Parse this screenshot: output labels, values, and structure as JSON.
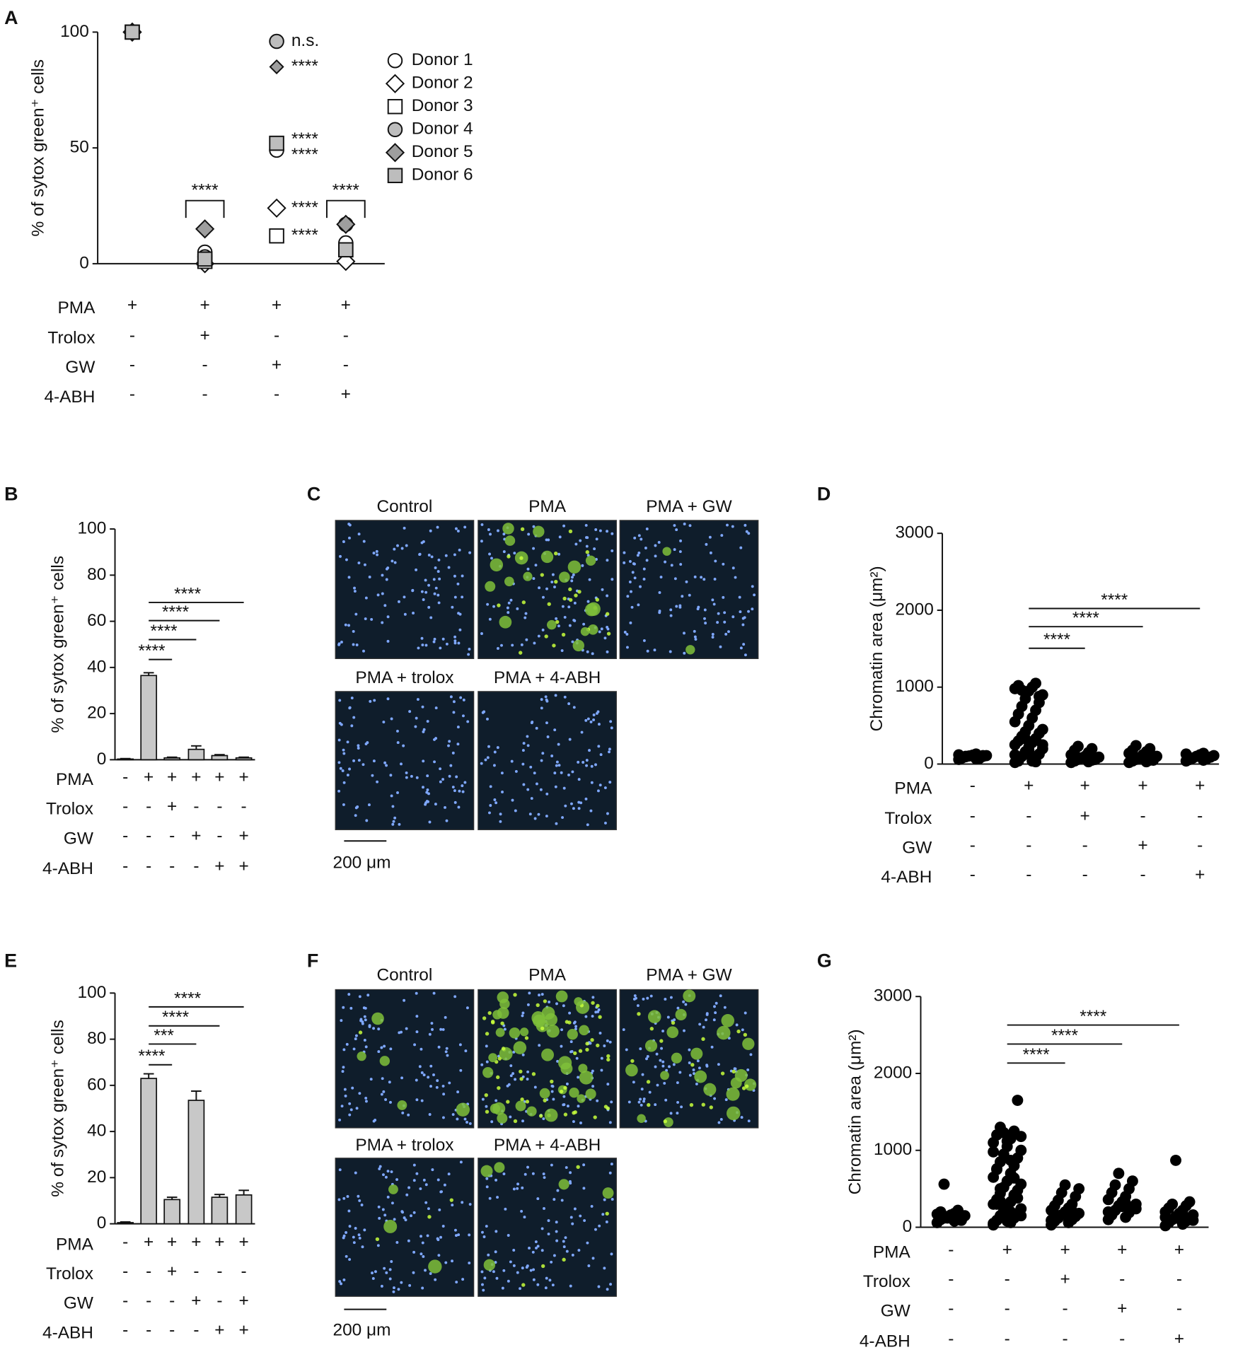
{
  "panel_labels": [
    "A",
    "B",
    "C",
    "D",
    "E",
    "F",
    "G"
  ],
  "chart_data": [
    {
      "type": "dot",
      "y_label": "% of sytox green⁺ cells",
      "categories": [
        null,
        null,
        null,
        null
      ],
      "ylim": [
        0,
        100
      ],
      "yticks": [
        0,
        50,
        100
      ],
      "grid": false,
      "series": [
        {
          "name": "Donor 1",
          "marker": "circle",
          "color": "#ffffff",
          "values": [
            100,
            5,
            49,
            9
          ],
          "significance": "****"
        },
        {
          "name": "Donor 2",
          "marker": "diamond",
          "color": "#ffffff",
          "values": [
            100,
            0,
            24,
            1
          ],
          "significance": "****"
        },
        {
          "name": "Donor 3",
          "marker": "square",
          "color": "#ffffff",
          "values": [
            100,
            1,
            12,
            6
          ],
          "significance": "****"
        },
        {
          "name": "Donor 4",
          "marker": "circle",
          "color": "#bdbdbd",
          "values": [
            100,
            3,
            96,
            17
          ],
          "significance": "n.s."
        },
        {
          "name": "Donor 5",
          "marker": "diamond",
          "color": "#9e9e9e",
          "values": [
            100,
            15,
            85,
            17
          ],
          "significance": "****"
        },
        {
          "name": "Donor 6",
          "marker": "square",
          "color": "#bdbdbd",
          "values": [
            100,
            2,
            52,
            6
          ],
          "significance": "****"
        }
      ],
      "comparisons": [
        "****",
        "****"
      ],
      "conditions": [
        {
          "label": "PMA",
          "marks": [
            "+",
            "+",
            "+",
            "+"
          ]
        },
        {
          "label": "Trolox",
          "marks": [
            "-",
            "+",
            "-",
            "-"
          ]
        },
        {
          "label": "GW",
          "marks": [
            "-",
            "-",
            "+",
            "-"
          ]
        },
        {
          "label": "4-ABH",
          "marks": [
            "-",
            "-",
            "-",
            "+"
          ]
        }
      ]
    },
    {
      "type": "bar",
      "y_label": "% of sytox green⁺ cells",
      "categories": [
        null,
        null,
        null,
        null,
        null,
        null
      ],
      "values": [
        0.3,
        36.5,
        0.8,
        4.5,
        1.8,
        0.8
      ],
      "errors": [
        0.2,
        1.2,
        0.3,
        1.5,
        0.4,
        0.3
      ],
      "color": "#c8c8c8",
      "ylim": [
        0,
        100
      ],
      "yticks": [
        0,
        20,
        40,
        60,
        80,
        100
      ],
      "grid": false,
      "comparisons": [
        "****",
        "****",
        "****",
        "****"
      ],
      "conditions": [
        {
          "label": "PMA",
          "marks": [
            "-",
            "+",
            "+",
            "+",
            "+",
            "+"
          ]
        },
        {
          "label": "Trolox",
          "marks": [
            "-",
            "-",
            "+",
            "-",
            "-",
            "-"
          ]
        },
        {
          "label": "GW",
          "marks": [
            "-",
            "-",
            "-",
            "+",
            "-",
            "+"
          ]
        },
        {
          "label": "4-ABH",
          "marks": [
            "-",
            "-",
            "-",
            "-",
            "+",
            "+"
          ]
        }
      ]
    },
    {
      "type": "strip",
      "y_label": "Chromatin area (μm²)",
      "categories": [
        null,
        null,
        null,
        null,
        null
      ],
      "color": "#000000",
      "ylim": [
        0,
        3000
      ],
      "yticks": [
        0,
        1000,
        2000,
        3000
      ],
      "grid": false,
      "series": [
        {
          "values": [
            60,
            70,
            80,
            90,
            95,
            100,
            105,
            110,
            115,
            120,
            130,
            85,
            75,
            100,
            110
          ]
        },
        {
          "values": [
            20,
            40,
            60,
            80,
            100,
            130,
            160,
            200,
            220,
            250,
            280,
            300,
            330,
            360,
            400,
            420,
            450,
            500,
            550,
            600,
            650,
            700,
            750,
            800,
            850,
            900,
            950,
            980,
            1000,
            1020,
            1050,
            960,
            880,
            330,
            250,
            180,
            120,
            70,
            40,
            30
          ]
        },
        {
          "values": [
            20,
            30,
            40,
            50,
            60,
            70,
            80,
            90,
            100,
            120,
            150,
            180,
            200,
            230,
            60
          ]
        },
        {
          "values": [
            20,
            30,
            40,
            50,
            60,
            70,
            80,
            100,
            120,
            140,
            160,
            180,
            200,
            240,
            50
          ]
        },
        {
          "values": [
            40,
            50,
            60,
            70,
            80,
            90,
            100,
            110,
            120,
            130,
            140,
            60,
            80
          ]
        }
      ],
      "comparisons": [
        "****",
        "****",
        "****"
      ],
      "conditions": [
        {
          "label": "PMA",
          "marks": [
            "-",
            "+",
            "+",
            "+",
            "+"
          ]
        },
        {
          "label": "Trolox",
          "marks": [
            "-",
            "-",
            "+",
            "-",
            "-"
          ]
        },
        {
          "label": "GW",
          "marks": [
            "-",
            "-",
            "-",
            "+",
            "-"
          ]
        },
        {
          "label": "4-ABH",
          "marks": [
            "-",
            "-",
            "-",
            "-",
            "+"
          ]
        }
      ]
    },
    {
      "type": "bar",
      "y_label": "% of sytox green⁺ cells",
      "categories": [
        null,
        null,
        null,
        null,
        null,
        null
      ],
      "values": [
        0.5,
        63,
        10.5,
        53.5,
        11.5,
        12.5
      ],
      "errors": [
        0.3,
        2,
        1,
        4,
        1.2,
        2
      ],
      "color": "#c8c8c8",
      "ylim": [
        0,
        100
      ],
      "yticks": [
        0,
        20,
        40,
        60,
        80,
        100
      ],
      "grid": false,
      "comparisons": [
        "****",
        "***",
        "****",
        "****"
      ],
      "conditions": [
        {
          "label": "PMA",
          "marks": [
            "-",
            "+",
            "+",
            "+",
            "+",
            "+"
          ]
        },
        {
          "label": "Trolox",
          "marks": [
            "-",
            "-",
            "+",
            "-",
            "-",
            "-"
          ]
        },
        {
          "label": "GW",
          "marks": [
            "-",
            "-",
            "-",
            "+",
            "-",
            "+"
          ]
        },
        {
          "label": "4-ABH",
          "marks": [
            "-",
            "-",
            "-",
            "-",
            "+",
            "+"
          ]
        }
      ]
    },
    {
      "type": "strip",
      "y_label": "Chromatin area (μm²)",
      "categories": [
        null,
        null,
        null,
        null,
        null
      ],
      "color": "#000000",
      "ylim": [
        0,
        3000
      ],
      "yticks": [
        0,
        1000,
        2000,
        3000
      ],
      "grid": false,
      "series": [
        {
          "values": [
            60,
            80,
            100,
            110,
            120,
            130,
            140,
            150,
            160,
            170,
            180,
            200,
            220,
            560,
            90,
            120
          ]
        },
        {
          "values": [
            30,
            60,
            90,
            120,
            150,
            180,
            210,
            240,
            270,
            300,
            330,
            360,
            400,
            440,
            480,
            520,
            560,
            600,
            650,
            700,
            750,
            800,
            850,
            900,
            950,
            1000,
            1050,
            1100,
            1150,
            1200,
            1250,
            1300,
            1650,
            1230,
            1180,
            1120,
            980,
            870,
            760,
            640,
            500,
            380,
            260,
            150,
            80,
            50,
            200,
            300,
            420,
            340
          ]
        },
        {
          "values": [
            30,
            60,
            80,
            100,
            120,
            140,
            160,
            180,
            200,
            220,
            250,
            280,
            300,
            350,
            400,
            450,
            500,
            550,
            90,
            130,
            170,
            210
          ]
        },
        {
          "values": [
            100,
            130,
            160,
            190,
            220,
            250,
            280,
            300,
            330,
            360,
            400,
            450,
            500,
            550,
            600,
            700,
            240,
            270,
            200,
            310
          ]
        },
        {
          "values": [
            20,
            40,
            60,
            80,
            100,
            120,
            140,
            160,
            180,
            200,
            220,
            250,
            280,
            300,
            330,
            870,
            90,
            110,
            130,
            150
          ]
        }
      ],
      "comparisons": [
        "****",
        "****",
        "****"
      ],
      "conditions": [
        {
          "label": "PMA",
          "marks": [
            "-",
            "+",
            "+",
            "+",
            "+"
          ]
        },
        {
          "label": "Trolox",
          "marks": [
            "-",
            "-",
            "+",
            "-",
            "-"
          ]
        },
        {
          "label": "GW",
          "marks": [
            "-",
            "-",
            "-",
            "+",
            "-"
          ]
        },
        {
          "label": "4-ABH",
          "marks": [
            "-",
            "-",
            "-",
            "-",
            "+"
          ]
        }
      ]
    }
  ],
  "micrographs": [
    {
      "titles": [
        "Control",
        "PMA",
        "PMA + GW",
        "PMA + trolox",
        "PMA + 4-ABH"
      ],
      "scale_bar": "200 μm"
    },
    {
      "titles": [
        "Control",
        "PMA",
        "PMA + GW",
        "PMA + trolox",
        "PMA + 4-ABH"
      ],
      "scale_bar": "200 μm"
    }
  ]
}
